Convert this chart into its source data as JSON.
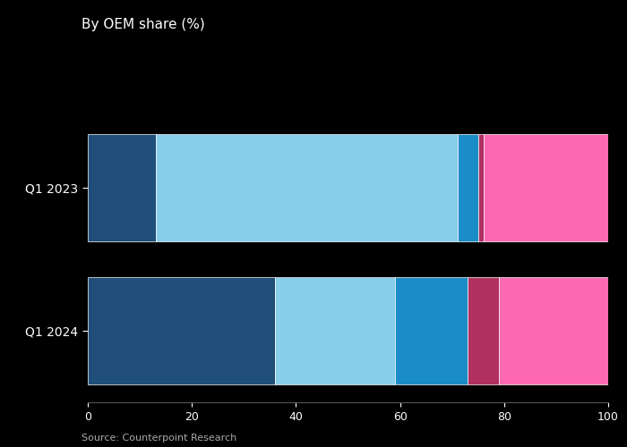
{
  "title": "By OEM share (%)",
  "source": "Source: Counterpoint Research",
  "categories": [
    "Q1 2023",
    "Q1 2024"
  ],
  "series": {
    "Huawei": [
      13,
      36
    ],
    "Samsung": [
      58,
      23
    ],
    "Honor": [
      4,
      14
    ],
    "Motorola": [
      1,
      6
    ],
    "Others": [
      24,
      21
    ]
  },
  "colors": {
    "Huawei": "#1f4e79",
    "Samsung": "#87ceeb",
    "Honor": "#1a8dc8",
    "Motorola": "#b03060",
    "Others": "#ff69b4"
  },
  "xlim": [
    0,
    100
  ],
  "xticks": [
    0,
    20,
    40,
    60,
    80,
    100
  ],
  "background_color": "#000000",
  "text_color": "#ffffff",
  "title_fontsize": 11,
  "tick_fontsize": 9,
  "legend_fontsize": 9,
  "source_fontsize": 8,
  "ylabel_fontsize": 10
}
